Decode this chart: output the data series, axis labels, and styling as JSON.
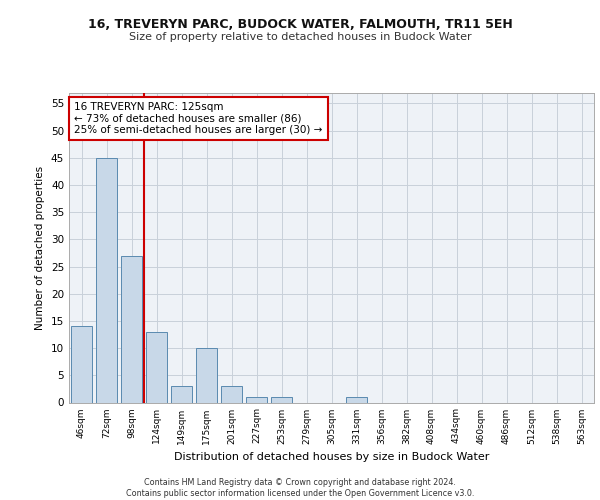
{
  "title1": "16, TREVERYN PARC, BUDOCK WATER, FALMOUTH, TR11 5EH",
  "title2": "Size of property relative to detached houses in Budock Water",
  "xlabel": "Distribution of detached houses by size in Budock Water",
  "ylabel": "Number of detached properties",
  "categories": [
    "46sqm",
    "72sqm",
    "98sqm",
    "124sqm",
    "149sqm",
    "175sqm",
    "201sqm",
    "227sqm",
    "253sqm",
    "279sqm",
    "305sqm",
    "331sqm",
    "356sqm",
    "382sqm",
    "408sqm",
    "434sqm",
    "460sqm",
    "486sqm",
    "512sqm",
    "538sqm",
    "563sqm"
  ],
  "values": [
    14,
    45,
    27,
    13,
    3,
    10,
    3,
    1,
    1,
    0,
    0,
    1,
    0,
    0,
    0,
    0,
    0,
    0,
    0,
    0,
    0
  ],
  "bar_color": "#c8d8e8",
  "bar_edge_color": "#5a8ab0",
  "annotation_text": "16 TREVERYN PARC: 125sqm\n← 73% of detached houses are smaller (86)\n25% of semi-detached houses are larger (30) →",
  "annotation_box_color": "#ffffff",
  "annotation_box_edge_color": "#cc0000",
  "vline_color": "#cc0000",
  "vline_x": 2.5,
  "ylim": [
    0,
    57
  ],
  "yticks": [
    0,
    5,
    10,
    15,
    20,
    25,
    30,
    35,
    40,
    45,
    50,
    55
  ],
  "footer": "Contains HM Land Registry data © Crown copyright and database right 2024.\nContains public sector information licensed under the Open Government Licence v3.0.",
  "bg_color": "#eef2f7",
  "grid_color": "#c8d0da",
  "fig_bg": "#ffffff"
}
